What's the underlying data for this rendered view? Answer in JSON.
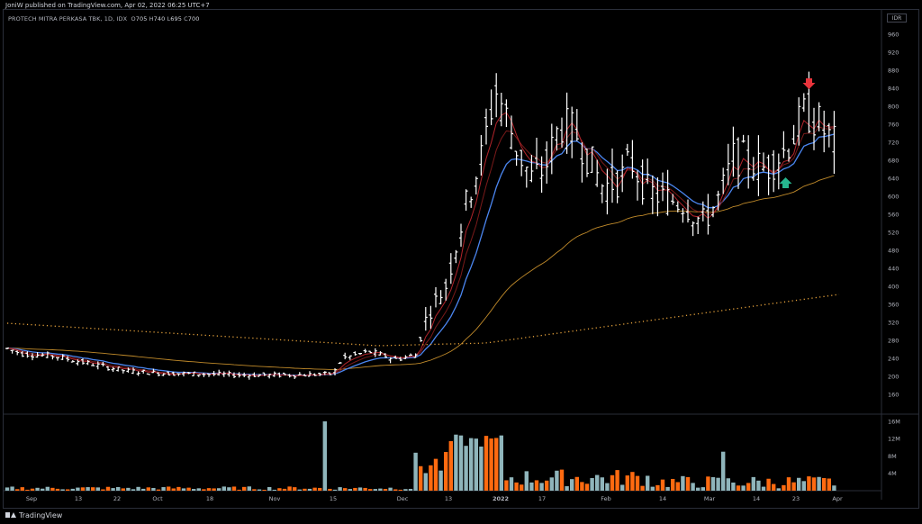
{
  "header": {
    "publisher": "JoniW published on TradingView.com, Apr 02, 2022 06:25 UTC+7",
    "symbol": "PROTECH MITRA PERKASA TBK, 1D, IDX",
    "ohlc": {
      "o_label": "O",
      "o": "705",
      "h_label": "H",
      "h": "740",
      "l_label": "L",
      "l": "695",
      "c_label": "C",
      "c": "700"
    },
    "currency": "IDR"
  },
  "footer": {
    "brand": "TradingView"
  },
  "colors": {
    "bull": "#ffffff",
    "vol_up": "#8fb5bb",
    "vol_down": "#ff6a10",
    "ema_blue": "#4b86f0",
    "ema_red": "#b3242b",
    "ema_dark_red": "#7a1a1a",
    "ma_orange": "#c08a2a",
    "ma_dotted": "#e7a33c",
    "arrow_down": "#e8343c",
    "arrow_up": "#26b58e"
  },
  "chart_data": {
    "type": "ohlc",
    "price_axis": {
      "labels": [
        "960",
        "920",
        "880",
        "840",
        "800",
        "760",
        "720",
        "680",
        "640",
        "600",
        "560",
        "520",
        "480",
        "440",
        "400",
        "360",
        "320",
        "280",
        "240",
        "200",
        "160"
      ],
      "ylim": [
        140,
        980
      ]
    },
    "volume_axis": {
      "labels": [
        "16M",
        "12M",
        "8M",
        "4M"
      ],
      "ylim": [
        0,
        17
      ]
    },
    "time_axis": {
      "labels": [
        "Sep",
        "13",
        "22",
        "Oct",
        "18",
        "Nov",
        "15",
        "Dec",
        "13",
        "2022",
        "17",
        "Feb",
        "14",
        "Mar",
        "14",
        "23",
        "Apr"
      ]
    },
    "bars_ohlc_samples": [
      [
        250,
        270,
        240,
        255
      ],
      [
        208,
        215,
        200,
        205
      ],
      [
        260,
        420,
        255,
        400
      ],
      [
        720,
        920,
        700,
        850
      ],
      [
        600,
        780,
        570,
        700
      ],
      [
        620,
        760,
        560,
        700
      ],
      [
        720,
        820,
        690,
        740
      ],
      [
        705,
        740,
        695,
        700
      ]
    ],
    "series_hint": [
      "ema fast (red)",
      "ema mid (dark red)",
      "ema slow (blue)",
      "ma long (orange)",
      "ma 200 (dotted)"
    ],
    "annotations": [
      {
        "type": "arrow-down",
        "at_label": "23"
      },
      {
        "type": "arrow-up",
        "at_label": "14"
      }
    ]
  }
}
